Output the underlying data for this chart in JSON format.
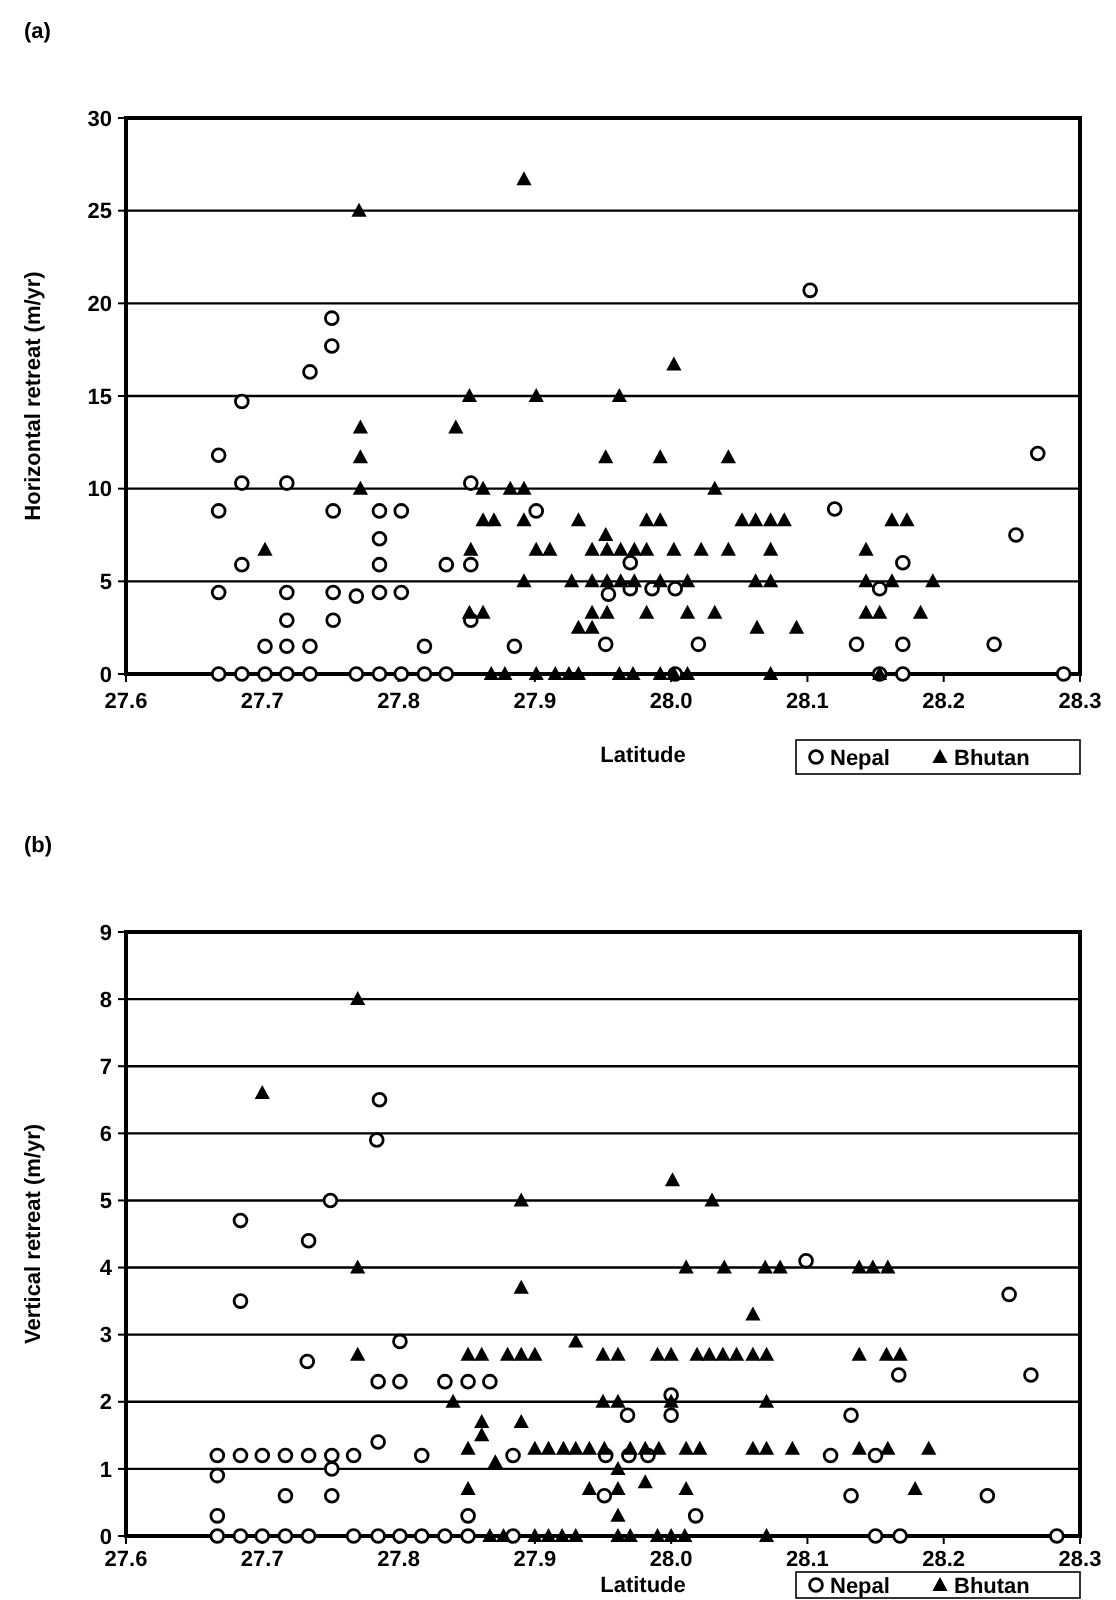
{
  "chart_data": [
    {
      "type": "scatter",
      "title": "(a)",
      "xlabel": "Latitude",
      "ylabel": "Horizontal retreat (m/yr)",
      "xlim": [
        27.6,
        28.3
      ],
      "xticks": [
        {
          "value": 27.6,
          "label": "27.6"
        },
        {
          "value": 27.7,
          "label": "27.7"
        },
        {
          "value": 27.8,
          "label": "27.8"
        },
        {
          "value": 27.9,
          "label": "27.9"
        },
        {
          "value": 28.0,
          "label": "28.0"
        },
        {
          "value": 28.1,
          "label": "28.1"
        },
        {
          "value": 28.2,
          "label": "28.2"
        },
        {
          "value": 28.3,
          "label": "28.3"
        }
      ],
      "ylim": [
        0,
        30
      ],
      "yticks": [
        0,
        5,
        10,
        15,
        20,
        25,
        30
      ],
      "grid": "y",
      "legend": "bottom right",
      "series": [
        {
          "name": "Nepal",
          "color": "#000000",
          "marker": "circle",
          "x": [
            27.751,
            27.751,
            27.735,
            27.685,
            27.668,
            27.685,
            27.718,
            27.853,
            27.668,
            27.752,
            27.786,
            27.802,
            27.901,
            27.786,
            27.685,
            27.786,
            27.835,
            27.853,
            27.668,
            27.718,
            27.752,
            27.769,
            27.786,
            27.802,
            27.718,
            27.752,
            27.853,
            27.702,
            27.718,
            27.735,
            27.819,
            27.885,
            28.102,
            28.269,
            28.12,
            28.253,
            28.17,
            28.153,
            27.97,
            27.954,
            27.97,
            27.986,
            28.003,
            27.952,
            28.02,
            28.136,
            28.17,
            28.237,
            27.668,
            27.685,
            27.702,
            27.718,
            27.735,
            27.769,
            27.786,
            27.802,
            27.819,
            27.835,
            28.003,
            28.153,
            28.17,
            28.288
          ],
          "values": [
            19.2,
            17.7,
            16.3,
            14.7,
            11.8,
            10.3,
            10.3,
            10.3,
            8.8,
            8.8,
            8.8,
            8.8,
            8.8,
            7.3,
            5.9,
            5.9,
            5.9,
            5.9,
            4.4,
            4.4,
            4.4,
            4.2,
            4.4,
            4.4,
            2.9,
            2.9,
            2.9,
            1.5,
            1.5,
            1.5,
            1.5,
            1.5,
            20.7,
            11.9,
            8.9,
            7.5,
            6.0,
            4.6,
            6.0,
            4.3,
            4.6,
            4.6,
            4.6,
            1.6,
            1.6,
            1.6,
            1.6,
            1.6,
            0,
            0,
            0,
            0,
            0,
            0,
            0,
            0,
            0,
            0,
            0,
            0,
            0,
            0
          ]
        },
        {
          "name": "Bhutan",
          "color": "#000000",
          "marker": "triangle",
          "x": [
            27.892,
            27.771,
            27.852,
            27.901,
            27.772,
            27.842,
            27.772,
            27.772,
            27.862,
            27.882,
            27.892,
            27.862,
            27.87,
            27.892,
            27.932,
            27.702,
            27.853,
            27.901,
            27.911,
            27.942,
            27.892,
            27.927,
            27.942,
            27.852,
            27.862,
            27.942,
            27.932,
            27.942,
            28.002,
            27.962,
            27.952,
            27.992,
            28.042,
            28.032,
            27.982,
            27.992,
            28.052,
            28.062,
            28.073,
            28.083,
            28.162,
            28.173,
            27.952,
            27.953,
            27.963,
            27.973,
            27.982,
            28.002,
            28.022,
            28.042,
            28.073,
            28.143,
            27.953,
            27.963,
            27.973,
            27.992,
            28.012,
            28.062,
            28.073,
            28.143,
            28.162,
            28.192,
            27.953,
            27.982,
            28.012,
            28.032,
            28.143,
            28.153,
            28.183,
            28.063,
            28.092,
            27.868,
            27.878,
            27.901,
            27.915,
            27.925,
            27.932,
            27.962,
            27.972,
            27.992,
            28.002,
            28.012,
            28.073,
            28.153
          ],
          "values": [
            26.7,
            25.0,
            15.0,
            15.0,
            13.3,
            13.3,
            11.7,
            10.0,
            10.0,
            10.0,
            10.0,
            8.3,
            8.3,
            8.3,
            8.3,
            6.7,
            6.7,
            6.7,
            6.7,
            6.7,
            5.0,
            5.0,
            5.0,
            3.3,
            3.3,
            3.3,
            2.5,
            2.5,
            16.7,
            15.0,
            11.7,
            11.7,
            11.7,
            10.0,
            8.3,
            8.3,
            8.3,
            8.3,
            8.3,
            8.3,
            8.3,
            8.3,
            7.5,
            6.7,
            6.7,
            6.7,
            6.7,
            6.7,
            6.7,
            6.7,
            6.7,
            6.7,
            5.0,
            5.0,
            5.0,
            5.0,
            5.0,
            5.0,
            5.0,
            5.0,
            5.0,
            5.0,
            3.3,
            3.3,
            3.3,
            3.3,
            3.3,
            3.3,
            3.3,
            2.5,
            2.5,
            0,
            0,
            0,
            0,
            0,
            0,
            0,
            0,
            0,
            0,
            0,
            0,
            0
          ]
        }
      ]
    },
    {
      "type": "scatter",
      "title": "(b)",
      "xlabel": "Latitude",
      "ylabel": "Vertical retreat (m/yr)",
      "xlim": [
        27.6,
        28.3
      ],
      "xticks": [
        {
          "value": 27.6,
          "label": "27.6"
        },
        {
          "value": 27.7,
          "label": "27.7"
        },
        {
          "value": 27.8,
          "label": "27.8"
        },
        {
          "value": 27.9,
          "label": "27.9"
        },
        {
          "value": 28.0,
          "label": "28.0"
        },
        {
          "value": 28.1,
          "label": "28.1"
        },
        {
          "value": 28.2,
          "label": "28.2"
        },
        {
          "value": 28.3,
          "label": "28.3"
        }
      ],
      "ylim": [
        0,
        9
      ],
      "yticks": [
        0,
        1,
        2,
        3,
        4,
        5,
        6,
        7,
        8,
        9
      ],
      "grid": "y",
      "legend": "bottom right",
      "series": [
        {
          "name": "Nepal",
          "color": "#000000",
          "marker": "circle",
          "x": [
            27.786,
            27.784,
            27.684,
            27.734,
            27.75,
            27.684,
            27.801,
            27.733,
            27.785,
            27.801,
            27.834,
            27.851,
            27.867,
            27.785,
            27.667,
            27.684,
            27.7,
            27.717,
            27.734,
            27.751,
            27.767,
            27.817,
            27.884,
            27.667,
            27.751,
            27.717,
            27.751,
            27.667,
            27.851,
            28.099,
            28.248,
            28.167,
            28.264,
            28.0,
            27.968,
            28.0,
            28.132,
            28.117,
            28.15,
            27.952,
            27.969,
            27.983,
            27.951,
            28.132,
            28.232,
            28.018,
            27.667,
            27.684,
            27.7,
            27.717,
            27.734,
            27.767,
            27.785,
            27.801,
            27.817,
            27.834,
            27.851,
            27.884,
            28.15,
            28.168,
            28.283
          ],
          "values": [
            6.5,
            5.9,
            4.7,
            4.4,
            5.0,
            3.5,
            2.9,
            2.6,
            2.3,
            2.3,
            2.3,
            2.3,
            2.3,
            1.4,
            1.2,
            1.2,
            1.2,
            1.2,
            1.2,
            1.2,
            1.2,
            1.2,
            1.2,
            0.9,
            1.0,
            0.6,
            0.6,
            0.3,
            0.3,
            4.1,
            3.6,
            2.4,
            2.4,
            2.1,
            1.8,
            1.8,
            1.8,
            1.2,
            1.2,
            1.2,
            1.2,
            1.2,
            0.6,
            0.6,
            0.6,
            0.3,
            0,
            0,
            0,
            0,
            0,
            0,
            0,
            0,
            0,
            0,
            0,
            0,
            0,
            0,
            0
          ]
        },
        {
          "name": "Bhutan",
          "color": "#000000",
          "marker": "triangle",
          "x": [
            27.77,
            27.7,
            27.89,
            27.77,
            27.89,
            27.77,
            27.851,
            27.861,
            27.88,
            27.89,
            27.9,
            27.95,
            27.93,
            27.84,
            27.95,
            27.861,
            27.861,
            27.89,
            27.851,
            27.871,
            27.9,
            27.91,
            27.921,
            27.93,
            27.94,
            27.851,
            27.94,
            28.001,
            28.03,
            28.011,
            28.039,
            28.069,
            28.08,
            28.138,
            28.148,
            28.159,
            28.06,
            27.961,
            27.99,
            28.0,
            28.019,
            28.028,
            28.038,
            28.048,
            28.06,
            28.07,
            28.138,
            28.158,
            28.168,
            27.961,
            28.0,
            28.07,
            27.951,
            27.97,
            27.981,
            27.991,
            28.011,
            28.021,
            28.06,
            28.07,
            28.089,
            28.138,
            28.159,
            28.189,
            27.961,
            27.981,
            27.961,
            28.011,
            28.179,
            27.961,
            27.867,
            27.877,
            27.9,
            27.91,
            27.92,
            27.93,
            27.961,
            27.97,
            27.99,
            28.0,
            28.01,
            28.07
          ],
          "values": [
            8.0,
            6.6,
            5.0,
            4.0,
            3.7,
            2.7,
            2.7,
            2.7,
            2.7,
            2.7,
            2.7,
            2.7,
            2.9,
            2.0,
            2.0,
            1.7,
            1.5,
            1.7,
            1.3,
            1.1,
            1.3,
            1.3,
            1.3,
            1.3,
            1.3,
            0.7,
            0.7,
            5.3,
            5.0,
            4.0,
            4.0,
            4.0,
            4.0,
            4.0,
            4.0,
            4.0,
            3.3,
            2.7,
            2.7,
            2.7,
            2.7,
            2.7,
            2.7,
            2.7,
            2.7,
            2.7,
            2.7,
            2.7,
            2.7,
            2.0,
            2.0,
            2.0,
            1.3,
            1.3,
            1.3,
            1.3,
            1.3,
            1.3,
            1.3,
            1.3,
            1.3,
            1.3,
            1.3,
            1.3,
            1.0,
            0.8,
            0.7,
            0.7,
            0.7,
            0.3,
            0,
            0,
            0,
            0,
            0,
            0,
            0,
            0,
            0,
            0,
            0,
            0
          ]
        }
      ]
    }
  ]
}
